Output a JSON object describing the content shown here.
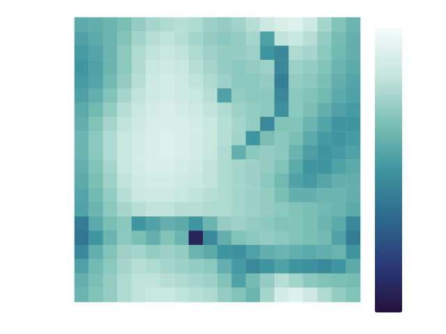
{
  "chart_data": {
    "type": "heatmap",
    "tick_labels": false,
    "colorbar_range": [
      0,
      1
    ],
    "cells": [
      [
        0.58,
        0.6,
        0.62,
        0.66,
        0.72,
        0.76,
        0.78,
        0.8,
        0.78,
        0.74,
        0.72,
        0.75,
        0.8,
        0.86,
        0.9,
        0.92,
        0.86,
        0.76,
        0.68,
        0.62
      ],
      [
        0.55,
        0.58,
        0.62,
        0.68,
        0.75,
        0.8,
        0.82,
        0.8,
        0.76,
        0.72,
        0.7,
        0.72,
        0.76,
        0.55,
        0.82,
        0.84,
        0.8,
        0.72,
        0.65,
        0.6
      ],
      [
        0.52,
        0.56,
        0.62,
        0.7,
        0.78,
        0.82,
        0.84,
        0.82,
        0.78,
        0.74,
        0.72,
        0.72,
        0.74,
        0.5,
        0.45,
        0.78,
        0.76,
        0.7,
        0.64,
        0.6
      ],
      [
        0.5,
        0.55,
        0.62,
        0.7,
        0.78,
        0.84,
        0.86,
        0.84,
        0.8,
        0.76,
        0.72,
        0.7,
        0.72,
        0.74,
        0.45,
        0.74,
        0.72,
        0.68,
        0.62,
        0.58
      ],
      [
        0.52,
        0.56,
        0.64,
        0.72,
        0.8,
        0.86,
        0.88,
        0.86,
        0.82,
        0.78,
        0.74,
        0.7,
        0.7,
        0.72,
        0.42,
        0.72,
        0.7,
        0.66,
        0.6,
        0.56
      ],
      [
        0.55,
        0.6,
        0.68,
        0.76,
        0.82,
        0.86,
        0.88,
        0.86,
        0.84,
        0.8,
        0.55,
        0.72,
        0.7,
        0.7,
        0.45,
        0.7,
        0.68,
        0.64,
        0.58,
        0.55
      ],
      [
        0.58,
        0.64,
        0.72,
        0.8,
        0.84,
        0.88,
        0.9,
        0.88,
        0.86,
        0.82,
        0.78,
        0.74,
        0.72,
        0.7,
        0.48,
        0.7,
        0.66,
        0.6,
        0.55,
        0.52
      ],
      [
        0.6,
        0.68,
        0.76,
        0.82,
        0.86,
        0.9,
        0.9,
        0.9,
        0.88,
        0.84,
        0.8,
        0.76,
        0.72,
        0.45,
        0.68,
        0.68,
        0.62,
        0.56,
        0.5,
        0.5
      ],
      [
        0.62,
        0.7,
        0.78,
        0.84,
        0.88,
        0.9,
        0.92,
        0.9,
        0.88,
        0.84,
        0.8,
        0.75,
        0.5,
        0.66,
        0.7,
        0.66,
        0.58,
        0.52,
        0.5,
        0.52
      ],
      [
        0.62,
        0.7,
        0.78,
        0.84,
        0.88,
        0.9,
        0.92,
        0.9,
        0.88,
        0.84,
        0.78,
        0.6,
        0.7,
        0.72,
        0.7,
        0.62,
        0.54,
        0.5,
        0.52,
        0.55
      ],
      [
        0.6,
        0.68,
        0.76,
        0.84,
        0.88,
        0.9,
        0.9,
        0.88,
        0.86,
        0.82,
        0.78,
        0.76,
        0.74,
        0.72,
        0.68,
        0.58,
        0.5,
        0.5,
        0.55,
        0.58
      ],
      [
        0.58,
        0.66,
        0.74,
        0.82,
        0.86,
        0.88,
        0.88,
        0.86,
        0.84,
        0.82,
        0.78,
        0.76,
        0.74,
        0.7,
        0.64,
        0.55,
        0.52,
        0.56,
        0.6,
        0.6
      ],
      [
        0.56,
        0.64,
        0.72,
        0.8,
        0.84,
        0.86,
        0.86,
        0.84,
        0.82,
        0.8,
        0.78,
        0.76,
        0.74,
        0.72,
        0.66,
        0.6,
        0.6,
        0.62,
        0.62,
        0.6
      ],
      [
        0.55,
        0.62,
        0.7,
        0.76,
        0.8,
        0.82,
        0.82,
        0.8,
        0.8,
        0.78,
        0.78,
        0.76,
        0.74,
        0.72,
        0.7,
        0.68,
        0.66,
        0.64,
        0.62,
        0.58
      ],
      [
        0.4,
        0.58,
        0.66,
        0.7,
        0.5,
        0.55,
        0.6,
        0.58,
        0.5,
        0.62,
        0.72,
        0.74,
        0.72,
        0.7,
        0.68,
        0.68,
        0.66,
        0.62,
        0.58,
        0.45
      ],
      [
        0.38,
        0.5,
        0.62,
        0.7,
        0.66,
        0.6,
        0.68,
        0.62,
        0.08,
        0.45,
        0.6,
        0.68,
        0.7,
        0.72,
        0.7,
        0.68,
        0.66,
        0.64,
        0.55,
        0.4
      ],
      [
        0.45,
        0.6,
        0.68,
        0.74,
        0.76,
        0.72,
        0.74,
        0.72,
        0.62,
        0.58,
        0.5,
        0.48,
        0.55,
        0.6,
        0.62,
        0.6,
        0.58,
        0.6,
        0.62,
        0.5
      ],
      [
        0.55,
        0.64,
        0.7,
        0.76,
        0.8,
        0.78,
        0.76,
        0.74,
        0.72,
        0.7,
        0.6,
        0.52,
        0.45,
        0.5,
        0.55,
        0.5,
        0.48,
        0.45,
        0.5,
        0.58
      ],
      [
        0.6,
        0.66,
        0.72,
        0.78,
        0.82,
        0.82,
        0.8,
        0.78,
        0.76,
        0.74,
        0.68,
        0.55,
        0.65,
        0.72,
        0.8,
        0.75,
        0.7,
        0.68,
        0.66,
        0.65
      ],
      [
        0.62,
        0.68,
        0.72,
        0.78,
        0.82,
        0.84,
        0.84,
        0.82,
        0.8,
        0.78,
        0.72,
        0.68,
        0.62,
        0.76,
        0.88,
        0.92,
        0.86,
        0.78,
        0.72,
        0.68
      ]
    ]
  }
}
